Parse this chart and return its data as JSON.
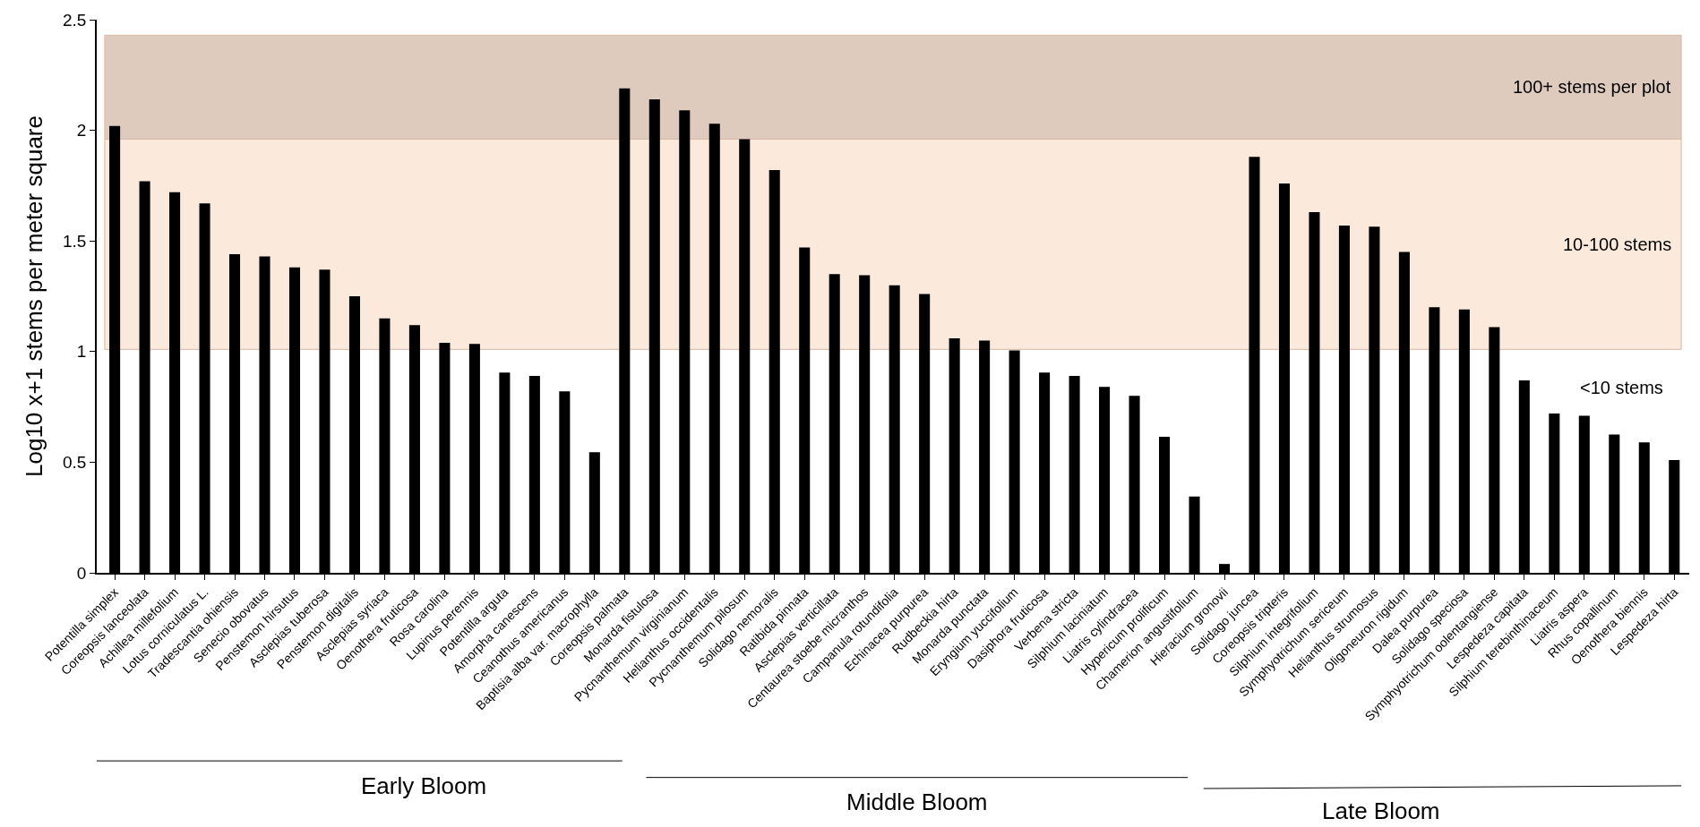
{
  "chart_data": {
    "type": "bar",
    "ylabel": "Log10 x+1 stems per meter square",
    "categories": [
      "Potentilla simplex",
      "Coreopsis lanceolata",
      "Achillea millefolium",
      "Lotus corniculatus L.",
      "Tradescantia ohiensis",
      "Senecio obovatus",
      "Penstemon hirsutus",
      "Asclepias tuberosa",
      "Penstemon digitalis",
      "Asclepias syriaca",
      "Oenothera fruticosa",
      "Rosa carolina",
      "Lupinus perennis",
      "Potentilla arguta",
      "Amorpha canescens",
      "Ceanothus americanus",
      "Baptisia alba var. macrophylla",
      "Coreopsis palmata",
      "Monarda fistulosa",
      "Pycnanthemum virginianum",
      "Helianthus occidentalis",
      "Pycnanthemum pilosum",
      "Solidago nemoralis",
      "Ratibida pinnata",
      "Asclepias verticillata",
      "Centaurea stoebe micranthos",
      "Campanula rotundifolia",
      "Echinacea purpurea",
      "Rudbeckia hirta",
      "Monarda punctata",
      "Eryngium yuccifolium",
      "Dasiphora fruticosa",
      "Verbena stricta",
      "Silphium laciniatum",
      "Liatris cylindracea",
      "Hypericum prolificum",
      "Chamerion angustifolium",
      "Hieracium gronovii",
      "Solidago juncea",
      "Coreopsis tripteris",
      "Silphium integrifolium",
      "Symphyotrichum sericeum",
      "Helianthus strumosus",
      "Oligoneuron rigidum",
      "Dalea purpurea",
      "Solidago speciosa",
      "Symphyotrichum oolentangiense",
      "Lespedeza capitata",
      "Silphium terebinthinaceum",
      "Liatris aspera",
      "Rhus copallinum",
      "Oenothera biennis",
      "Lespedeza hirta"
    ],
    "values": [
      2.02,
      1.77,
      1.72,
      1.67,
      1.44,
      1.43,
      1.38,
      1.37,
      1.25,
      1.15,
      1.12,
      1.04,
      1.035,
      0.905,
      0.89,
      0.82,
      0.545,
      2.19,
      2.14,
      2.09,
      2.03,
      1.96,
      1.82,
      1.47,
      1.35,
      1.345,
      1.3,
      1.26,
      1.06,
      1.05,
      1.005,
      0.905,
      0.89,
      0.84,
      0.8,
      0.615,
      0.345,
      0.04,
      1.88,
      1.76,
      1.63,
      1.57,
      1.565,
      1.45,
      1.2,
      1.19,
      1.11,
      0.87,
      0.72,
      0.71,
      0.625,
      0.59,
      0.51
    ],
    "color": "#000000",
    "ylim": [
      0,
      2.5
    ],
    "yticks": [
      0,
      0.5,
      1,
      1.5,
      2,
      2.5
    ],
    "bands": [
      {
        "axis": "y",
        "from": 1.01,
        "to": 1.96,
        "label": "10-100 stems",
        "color": "#fbe9dc"
      },
      {
        "axis": "y",
        "from": 1.96,
        "to": 2.43,
        "label": "100+ stems per plot",
        "color": "#dfcbbe"
      }
    ],
    "annotations": [
      "<10 stems",
      "Early Bloom",
      "Middle Bloom",
      "Late Bloom"
    ]
  }
}
